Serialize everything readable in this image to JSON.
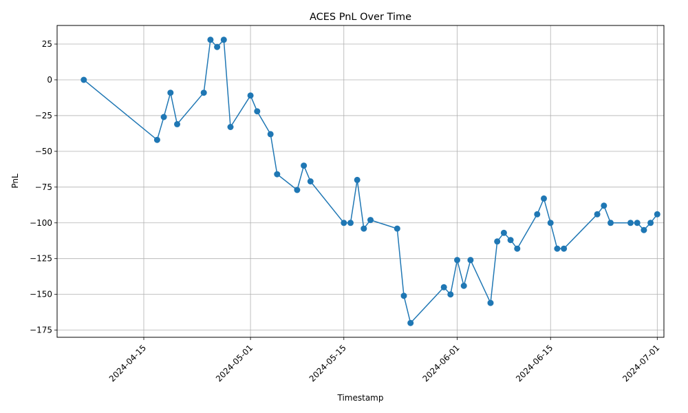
{
  "chart_data": {
    "type": "line",
    "title": "ACES PnL Over Time",
    "xlabel": "Timestamp",
    "ylabel": "PnL",
    "x_ticks": [
      "2024-04-15",
      "2024-05-01",
      "2024-05-15",
      "2024-06-01",
      "2024-06-15",
      "2024-07-01"
    ],
    "y_ticks": [
      25,
      0,
      -25,
      -50,
      -75,
      -100,
      -125,
      -150,
      -175
    ],
    "xlim": [
      "2024-04-02",
      "2024-07-02"
    ],
    "ylim": [
      -180,
      38
    ],
    "grid": true,
    "color": "#1f77b4",
    "marker": "circle",
    "series": [
      {
        "x": [
          "2024-04-06",
          "2024-04-17",
          "2024-04-18",
          "2024-04-19",
          "2024-04-20",
          "2024-04-24",
          "2024-04-25",
          "2024-04-26",
          "2024-04-27",
          "2024-04-28",
          "2024-05-01",
          "2024-05-02",
          "2024-05-04",
          "2024-05-05",
          "2024-05-08",
          "2024-05-09",
          "2024-05-10",
          "2024-05-15",
          "2024-05-16",
          "2024-05-17",
          "2024-05-18",
          "2024-05-19",
          "2024-05-23",
          "2024-05-24",
          "2024-05-25",
          "2024-05-30",
          "2024-05-31",
          "2024-06-01",
          "2024-06-02",
          "2024-06-03",
          "2024-06-06",
          "2024-06-07",
          "2024-06-08",
          "2024-06-09",
          "2024-06-10",
          "2024-06-13",
          "2024-06-14",
          "2024-06-15",
          "2024-06-16",
          "2024-06-17",
          "2024-06-22",
          "2024-06-23",
          "2024-06-24",
          "2024-06-27",
          "2024-06-28",
          "2024-06-29",
          "2024-06-30",
          "2024-07-01"
        ],
        "y": [
          0,
          -42,
          -26,
          -9,
          -31,
          -9,
          28,
          23,
          28,
          -33,
          -11,
          -22,
          -38,
          -66,
          -77,
          -60,
          -71,
          -100,
          -100,
          -70,
          -104,
          -98,
          -104,
          -151,
          -170,
          -145,
          -150,
          -126,
          -144,
          -126,
          -156,
          -113,
          -107,
          -112,
          -118,
          -94,
          -83,
          -100,
          -118,
          -118,
          -94,
          -88,
          -100,
          -100,
          -100,
          -105,
          -100,
          -94
        ]
      }
    ]
  }
}
